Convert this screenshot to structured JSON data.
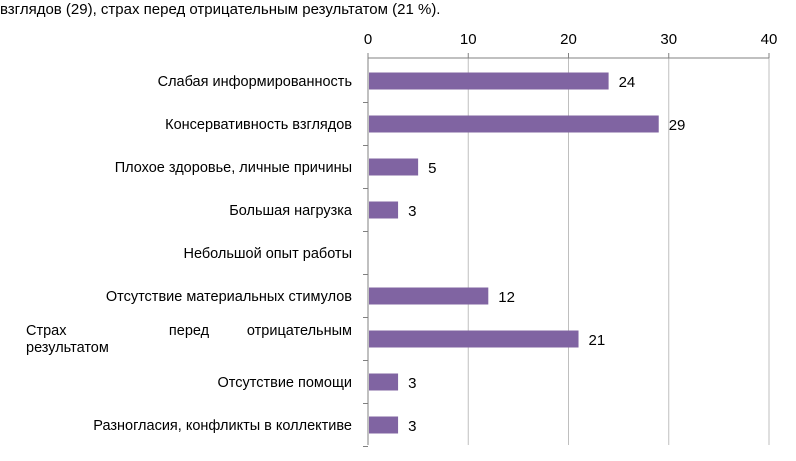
{
  "caption": "взглядов (29), страх перед отрицательным результатом (21 %).",
  "chart_data": {
    "type": "bar",
    "orientation": "horizontal",
    "categories": [
      [
        "Слабая информированность"
      ],
      [
        "Консервативность взглядов"
      ],
      [
        "Плохое здоровье, личные причины"
      ],
      [
        "Большая нагрузка"
      ],
      [
        "Небольшой опыт работы"
      ],
      [
        "Отсутствие материальных стимулов"
      ],
      [
        "Страх перед отрицательным",
        "результатом"
      ],
      [
        "Отсутствие помощи"
      ],
      [
        "Разногласия, конфликты в коллективе"
      ]
    ],
    "values": [
      24,
      29,
      5,
      3,
      null,
      12,
      21,
      3,
      3
    ],
    "xlim": [
      0,
      40
    ],
    "xticks": [
      0,
      10,
      20,
      30,
      40
    ],
    "axis_position": "top",
    "grid": "vertical",
    "bar_color": "#8064a2"
  }
}
